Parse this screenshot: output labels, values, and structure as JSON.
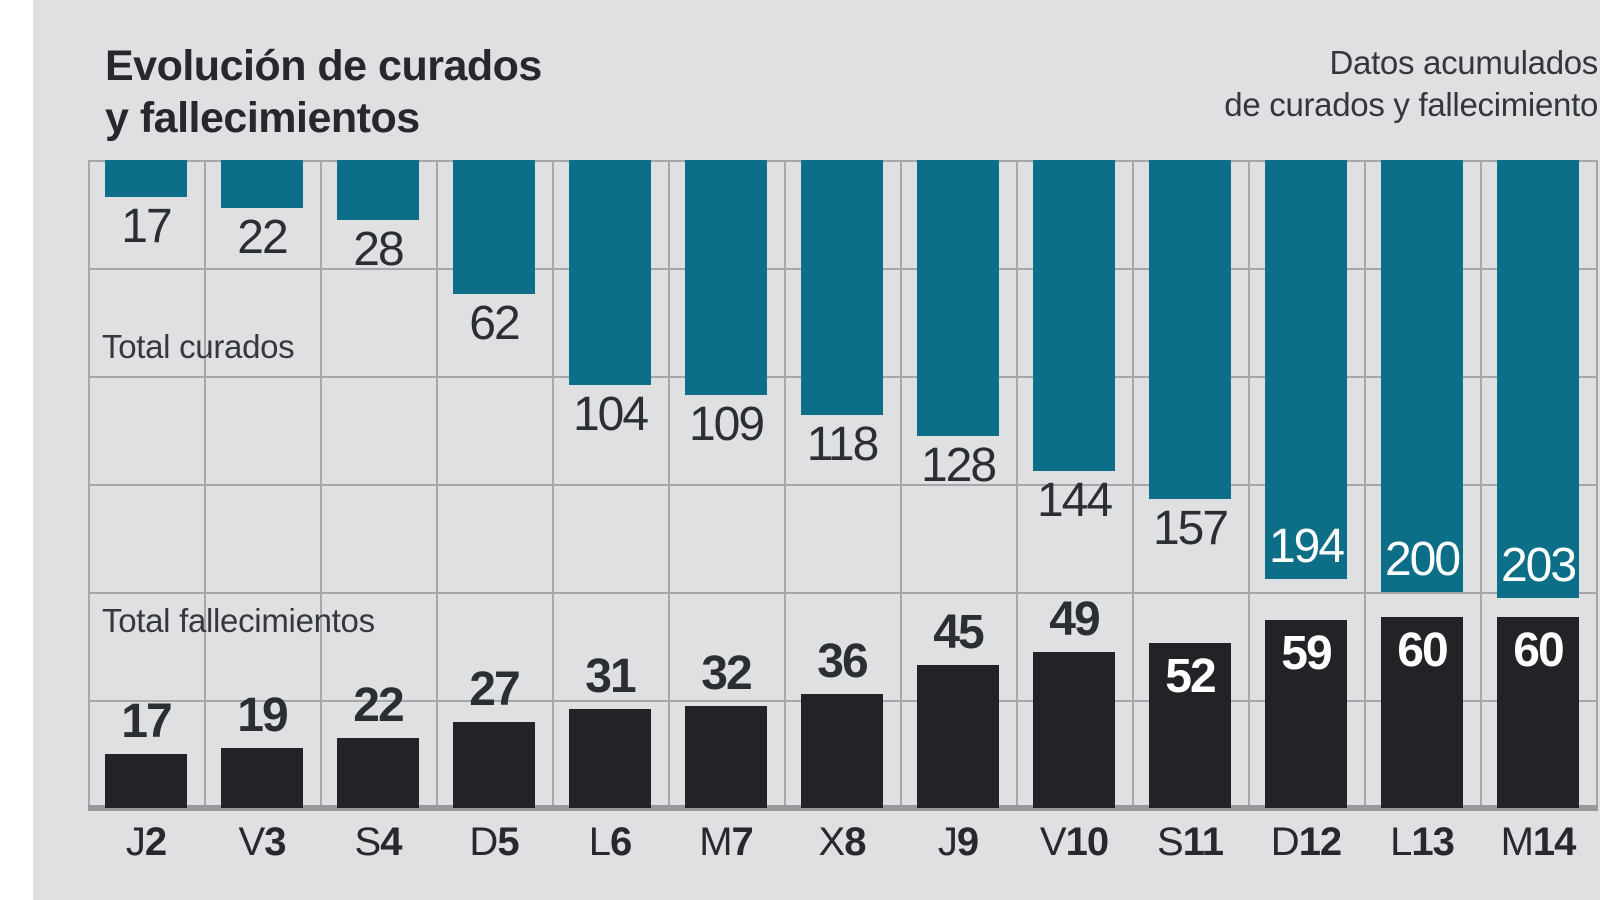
{
  "header": {
    "title_line1": "Evolución de curados",
    "title_line2": "y fallecimientos",
    "note_line1": "Datos acumulados",
    "note_line2": "de curados y fallecimiento"
  },
  "colors": {
    "curados": "#0d6e87",
    "fallecimientos": "#222327",
    "background": "#dfe0e2",
    "gridline": "#a4a6a9",
    "baseline": "#97999d",
    "label_dark": "#2b2e33",
    "label_light": "#ffffff"
  },
  "chart_data": {
    "type": "bar",
    "title": "Evolución de curados y fallecimientos",
    "subtitle": "Datos acumulados de curados y fallecimiento",
    "grid": true,
    "legend_position": "in-plot-left",
    "categories": [
      {
        "day": "J",
        "num": "2"
      },
      {
        "day": "V",
        "num": "3"
      },
      {
        "day": "S",
        "num": "4"
      },
      {
        "day": "D",
        "num": "5"
      },
      {
        "day": "L",
        "num": "6"
      },
      {
        "day": "M",
        "num": "7"
      },
      {
        "day": "X",
        "num": "8"
      },
      {
        "day": "J",
        "num": "9"
      },
      {
        "day": "V",
        "num": "10"
      },
      {
        "day": "S",
        "num": "11"
      },
      {
        "day": "D",
        "num": "12"
      },
      {
        "day": "L",
        "num": "13"
      },
      {
        "day": "M",
        "num": "14"
      }
    ],
    "series": [
      {
        "name": "Total curados",
        "direction": "down",
        "color_key": "curados",
        "values": [
          17,
          22,
          28,
          62,
          104,
          109,
          118,
          128,
          144,
          157,
          194,
          200,
          203
        ],
        "label_inside": [
          0,
          0,
          0,
          0,
          0,
          0,
          0,
          0,
          0,
          0,
          1,
          1,
          1
        ]
      },
      {
        "name": "Total fallecimientos",
        "direction": "up",
        "color_key": "fallecimientos",
        "values": [
          17,
          19,
          22,
          27,
          31,
          32,
          36,
          45,
          49,
          52,
          59,
          60,
          60
        ],
        "label_inside": [
          0,
          0,
          0,
          0,
          0,
          0,
          0,
          0,
          0,
          1,
          1,
          1,
          1
        ]
      }
    ]
  }
}
